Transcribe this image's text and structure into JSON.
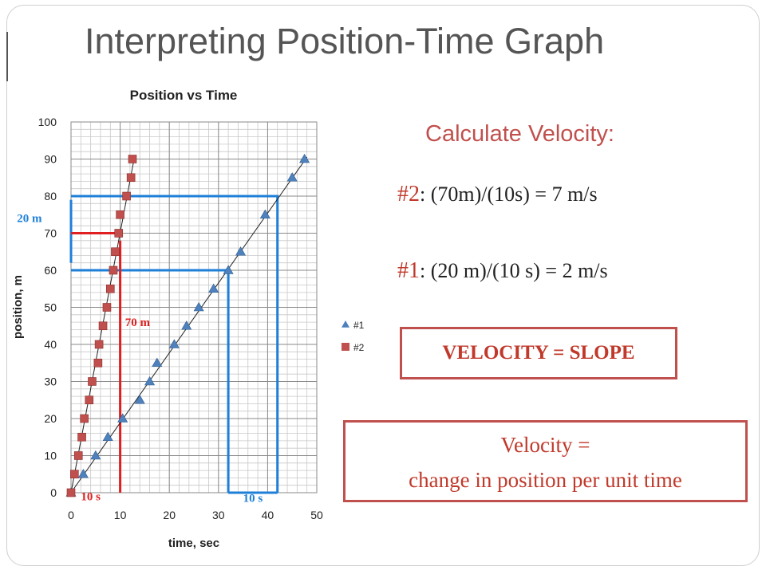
{
  "slide": {
    "title": "Interpreting Position-Time Graph"
  },
  "calc": {
    "heading": "Calculate Velocity:",
    "line2_num": "#2",
    "line2_text": ": (70m)/(10s) = 7 m/s",
    "line1_num": "#1",
    "line1_text": ": (20 m)/(10 s) = 2 m/s",
    "slope_box": "VELOCITY = SLOPE",
    "definition_line1": "Velocity =",
    "definition_line2": "change in position per unit time"
  },
  "colors": {
    "accent_red": "#c0504d",
    "series1": "#4f81bd",
    "series2": "#c0504d",
    "annot_blue": "#1e7fd8",
    "annot_red": "#e02020"
  },
  "chart_data": {
    "type": "scatter",
    "title": "Position vs Time",
    "xlabel": "time, sec",
    "ylabel": "position, m",
    "xlim": [
      0,
      50
    ],
    "ylim": [
      0,
      100
    ],
    "xticks": [
      0,
      10,
      20,
      30,
      40,
      50
    ],
    "yticks": [
      0,
      10,
      20,
      30,
      40,
      50,
      60,
      70,
      80,
      90,
      100
    ],
    "grid": true,
    "legend_position": "right",
    "series": [
      {
        "name": "#1",
        "marker": "triangle",
        "color": "#4f81bd",
        "x": [
          0,
          2.5,
          5,
          7.5,
          10.5,
          14,
          16,
          17.5,
          21,
          23.5,
          26,
          29,
          32,
          34.5,
          39.5,
          45,
          47.5
        ],
        "y": [
          0,
          5,
          10,
          15,
          20,
          25,
          30,
          35,
          40,
          45,
          50,
          55,
          60,
          65,
          75,
          85,
          90
        ]
      },
      {
        "name": "#2",
        "marker": "square",
        "color": "#c0504d",
        "x": [
          0,
          0.7,
          1.5,
          2.2,
          2.7,
          3.7,
          4.3,
          5.5,
          5.7,
          6.5,
          7.3,
          8,
          8.6,
          9,
          9.7,
          10,
          11.3,
          12.2,
          12.5
        ],
        "y": [
          0,
          5,
          10,
          15,
          20,
          25,
          30,
          35,
          40,
          45,
          50,
          55,
          60,
          65,
          70,
          75,
          80,
          85,
          90
        ]
      }
    ],
    "trendlines": [
      {
        "series": "#1",
        "from": [
          0,
          0
        ],
        "to": [
          48,
          90.5
        ]
      },
      {
        "series": "#2",
        "from": [
          0,
          0
        ],
        "to": [
          12.9,
          90.5
        ]
      }
    ],
    "annotations": [
      {
        "label": "70 m",
        "color": "#e02020",
        "x": 11,
        "y": 45
      },
      {
        "label": "10 s",
        "color": "#e02020",
        "x": 2,
        "y": -2
      },
      {
        "label": "20 m",
        "color": "#1e7fd8",
        "x": -11,
        "y": 73
      },
      {
        "label": "10 s",
        "color": "#1e7fd8",
        "x": 35,
        "y": -2.5
      }
    ]
  }
}
